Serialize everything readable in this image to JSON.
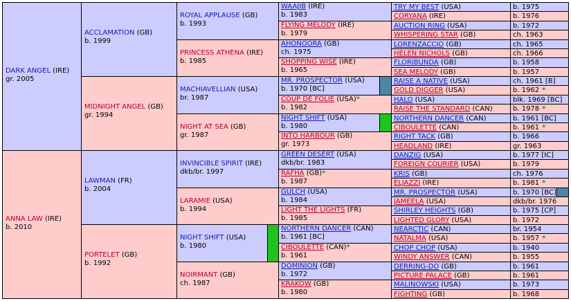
{
  "bars": {
    "green": "#1fc41f",
    "teal": "#4f86a6"
  },
  "pedigree": [
    {
      "gen": 1,
      "row": 0,
      "span": 16,
      "sex": "sire",
      "name": "DARK ANGEL",
      "ctry": "(IRE)",
      "info": "gr. 2005"
    },
    {
      "gen": 1,
      "row": 16,
      "span": 16,
      "sex": "dam",
      "name": "ANNA LAW",
      "ctry": "(IRE)",
      "info": "b. 2010"
    },
    {
      "gen": 2,
      "row": 0,
      "span": 8,
      "sex": "sire",
      "name": "ACCLAMATION",
      "ctry": "(GB)",
      "info": "b. 1999"
    },
    {
      "gen": 2,
      "row": 8,
      "span": 8,
      "sex": "dam",
      "name": "MIDNIGHT ANGEL",
      "ctry": "(GB)",
      "info": "gr. 1994"
    },
    {
      "gen": 2,
      "row": 16,
      "span": 8,
      "sex": "sire",
      "name": "LAWMAN",
      "ctry": "(FR)",
      "info": "b. 2004"
    },
    {
      "gen": 2,
      "row": 24,
      "span": 8,
      "sex": "dam",
      "name": "PORTELET",
      "ctry": "(GB)",
      "info": "b. 1992"
    },
    {
      "gen": 3,
      "row": 0,
      "span": 4,
      "sex": "sire",
      "name": "ROYAL APPLAUSE",
      "ctry": "(GB)",
      "info": "b. 1993"
    },
    {
      "gen": 3,
      "row": 4,
      "span": 4,
      "sex": "dam",
      "name": "PRINCESS ATHENA",
      "ctry": "(IRE)",
      "info": "b. 1985"
    },
    {
      "gen": 3,
      "row": 8,
      "span": 4,
      "sex": "sire",
      "name": "MACHIAVELLIAN",
      "ctry": "(USA)",
      "info": "br. 1987"
    },
    {
      "gen": 3,
      "row": 12,
      "span": 4,
      "sex": "dam",
      "name": "NIGHT AT SEA",
      "ctry": "(GB)",
      "info": "gr. 1987"
    },
    {
      "gen": 3,
      "row": 16,
      "span": 4,
      "sex": "sire",
      "name": "INVINCIBLE SPIRIT",
      "ctry": "(IRE)",
      "info": "dkb/br. 1997"
    },
    {
      "gen": 3,
      "row": 20,
      "span": 4,
      "sex": "dam",
      "name": "LARAMIE",
      "ctry": "(USA)",
      "info": "b. 1994"
    },
    {
      "gen": 3,
      "row": 24,
      "span": 4,
      "sex": "sire",
      "name": "NIGHT SHIFT",
      "ctry": "(USA)",
      "info": "b. 1980",
      "bar": "green"
    },
    {
      "gen": 3,
      "row": 28,
      "span": 4,
      "sex": "dam",
      "name": "NOIRMANT",
      "ctry": "(GB)",
      "info": "ch. 1987"
    },
    {
      "gen": 4,
      "row": 0,
      "span": 2,
      "sex": "sire",
      "name": "WAAJIB",
      "ctry": "(IRE)",
      "info": "b. 1983"
    },
    {
      "gen": 4,
      "row": 2,
      "span": 2,
      "sex": "dam",
      "name": "FLYING MELODY",
      "ctry": "(IRE)",
      "info": "b. 1979"
    },
    {
      "gen": 4,
      "row": 4,
      "span": 2,
      "sex": "sire",
      "name": "AHONOORA",
      "ctry": "(GB)",
      "info": "ch. 1975"
    },
    {
      "gen": 4,
      "row": 6,
      "span": 2,
      "sex": "dam",
      "name": "SHOPPING WISE",
      "ctry": "(IRE)",
      "info": "b. 1965"
    },
    {
      "gen": 4,
      "row": 8,
      "span": 2,
      "sex": "sire",
      "name": "MR. PROSPECTOR",
      "ctry": "(USA)",
      "info": "b. 1970 [BC]",
      "bar": "teal"
    },
    {
      "gen": 4,
      "row": 10,
      "span": 2,
      "sex": "dam",
      "name": "COUP DE FOLIE",
      "ctry": "(USA)",
      "info": "b. 1982",
      "star": true
    },
    {
      "gen": 4,
      "row": 12,
      "span": 2,
      "sex": "sire",
      "name": "NIGHT SHIFT",
      "ctry": "(USA)",
      "info": "b. 1980",
      "bar": "green"
    },
    {
      "gen": 4,
      "row": 14,
      "span": 2,
      "sex": "dam",
      "name": "INTO HARBOUR",
      "ctry": "(GB)",
      "info": "gr. 1973"
    },
    {
      "gen": 4,
      "row": 16,
      "span": 2,
      "sex": "sire",
      "name": "GREEN DESERT",
      "ctry": "(USA)",
      "info": "dkb/br. 1983"
    },
    {
      "gen": 4,
      "row": 18,
      "span": 2,
      "sex": "dam",
      "name": "RAFHA",
      "ctry": "(GB)",
      "info": "b. 1987",
      "star": true
    },
    {
      "gen": 4,
      "row": 20,
      "span": 2,
      "sex": "sire",
      "name": "GULCH",
      "ctry": "(USA)",
      "info": "b. 1984"
    },
    {
      "gen": 4,
      "row": 22,
      "span": 2,
      "sex": "dam",
      "name": "LIGHT THE LIGHTS",
      "ctry": "(FR)",
      "info": "b. 1985"
    },
    {
      "gen": 4,
      "row": 24,
      "span": 2,
      "sex": "sire",
      "name": "NORTHERN DANCER",
      "ctry": "(CAN)",
      "info": "b. 1961 [BC]"
    },
    {
      "gen": 4,
      "row": 26,
      "span": 2,
      "sex": "dam",
      "name": "CIBOULETTE",
      "ctry": "(CAN)",
      "info": "b. 1961",
      "star": true
    },
    {
      "gen": 4,
      "row": 28,
      "span": 2,
      "sex": "sire",
      "name": "DOMINION",
      "ctry": "(GB)",
      "info": "b. 1972"
    },
    {
      "gen": 4,
      "row": 30,
      "span": 2,
      "sex": "dam",
      "name": "KRAKOW",
      "ctry": "(GB)",
      "info": "b. 1980"
    },
    {
      "gen": 5,
      "row": 0,
      "span": 1,
      "sex": "sire",
      "name": "TRY MY BEST",
      "ctry": "(USA)",
      "info": "b. 1975"
    },
    {
      "gen": 5,
      "row": 1,
      "span": 1,
      "sex": "dam",
      "name": "CORYANA",
      "ctry": "(IRE)",
      "info": "b. 1976"
    },
    {
      "gen": 5,
      "row": 2,
      "span": 1,
      "sex": "sire",
      "name": "AUCTION RING",
      "ctry": "(USA)",
      "info": "b. 1972"
    },
    {
      "gen": 5,
      "row": 3,
      "span": 1,
      "sex": "dam",
      "name": "WHISPERING STAR",
      "ctry": "(GB)",
      "info": "ch. 1963"
    },
    {
      "gen": 5,
      "row": 4,
      "span": 1,
      "sex": "sire",
      "name": "LORENZACCIO",
      "ctry": "(GB)",
      "info": "ch. 1965"
    },
    {
      "gen": 5,
      "row": 5,
      "span": 1,
      "sex": "dam",
      "name": "HELEN NICHOLS",
      "ctry": "(GB)",
      "info": "ch. 1966"
    },
    {
      "gen": 5,
      "row": 6,
      "span": 1,
      "sex": "sire",
      "name": "FLORIBUNDA",
      "ctry": "(GB)",
      "info": "b. 1958"
    },
    {
      "gen": 5,
      "row": 7,
      "span": 1,
      "sex": "dam",
      "name": "SEA MELODY",
      "ctry": "(GB)",
      "info": "b. 1957"
    },
    {
      "gen": 5,
      "row": 8,
      "span": 1,
      "sex": "sire",
      "name": "RAISE A NATIVE",
      "ctry": "(USA)",
      "info": "ch. 1961 [B]"
    },
    {
      "gen": 5,
      "row": 9,
      "span": 1,
      "sex": "dam",
      "name": "GOLD DIGGER",
      "ctry": "(USA)",
      "info": "b. 1962",
      "star": true
    },
    {
      "gen": 5,
      "row": 10,
      "span": 1,
      "sex": "sire",
      "name": "HALO",
      "ctry": "(USA)",
      "info": "blk. 1969 [BC]"
    },
    {
      "gen": 5,
      "row": 11,
      "span": 1,
      "sex": "dam",
      "name": "RAISE THE STANDARD",
      "ctry": "(CAN)",
      "info": "b. 1978",
      "star": true
    },
    {
      "gen": 5,
      "row": 12,
      "span": 1,
      "sex": "sire",
      "name": "NORTHERN DANCER",
      "ctry": "(CAN)",
      "info": "b. 1961 [BC]"
    },
    {
      "gen": 5,
      "row": 13,
      "span": 1,
      "sex": "dam",
      "name": "CIBOULETTE",
      "ctry": "(CAN)",
      "info": "b. 1961",
      "star": true
    },
    {
      "gen": 5,
      "row": 14,
      "span": 1,
      "sex": "sire",
      "name": "RIGHT TACK",
      "ctry": "(GB)",
      "info": "b. 1966"
    },
    {
      "gen": 5,
      "row": 15,
      "span": 1,
      "sex": "dam",
      "name": "HEADLAND",
      "ctry": "(IRE)",
      "info": "gr. 1963"
    },
    {
      "gen": 5,
      "row": 16,
      "span": 1,
      "sex": "sire",
      "name": "DANZIG",
      "ctry": "(USA)",
      "info": "b. 1977 [IC]"
    },
    {
      "gen": 5,
      "row": 17,
      "span": 1,
      "sex": "dam",
      "name": "FOREIGN COURIER",
      "ctry": "(USA)",
      "info": "b. 1979"
    },
    {
      "gen": 5,
      "row": 18,
      "span": 1,
      "sex": "sire",
      "name": "KRIS",
      "ctry": "(GB)",
      "info": "ch. 1976"
    },
    {
      "gen": 5,
      "row": 19,
      "span": 1,
      "sex": "dam",
      "name": "ELJAZZI",
      "ctry": "(IRE)",
      "info": "b. 1981",
      "star": true
    },
    {
      "gen": 5,
      "row": 20,
      "span": 1,
      "sex": "sire",
      "name": "MR. PROSPECTOR",
      "ctry": "(USA)",
      "info": "b. 1970 [BC]",
      "bar": "teal"
    },
    {
      "gen": 5,
      "row": 21,
      "span": 1,
      "sex": "dam",
      "name": "JAMEELA",
      "ctry": "(USA)",
      "info": "dkb/br. 1976"
    },
    {
      "gen": 5,
      "row": 22,
      "span": 1,
      "sex": "sire",
      "name": "SHIRLEY HEIGHTS",
      "ctry": "(GB)",
      "info": "b. 1975 [CP]"
    },
    {
      "gen": 5,
      "row": 23,
      "span": 1,
      "sex": "dam",
      "name": "LIGHTED GLORY",
      "ctry": "(USA)",
      "info": "b. 1972"
    },
    {
      "gen": 5,
      "row": 24,
      "span": 1,
      "sex": "sire",
      "name": "NEARCTIC",
      "ctry": "(CAN)",
      "info": "br. 1954"
    },
    {
      "gen": 5,
      "row": 25,
      "span": 1,
      "sex": "dam",
      "name": "NATALMA",
      "ctry": "(USA)",
      "info": "b. 1957",
      "star": true
    },
    {
      "gen": 5,
      "row": 26,
      "span": 1,
      "sex": "sire",
      "name": "CHOP CHOP",
      "ctry": "(USA)",
      "info": "b. 1940"
    },
    {
      "gen": 5,
      "row": 27,
      "span": 1,
      "sex": "dam",
      "name": "WINDY ANSWER",
      "ctry": "(CAN)",
      "info": "b. 1955"
    },
    {
      "gen": 5,
      "row": 28,
      "span": 1,
      "sex": "sire",
      "name": "DERRING-DO",
      "ctry": "(GB)",
      "info": "b. 1961"
    },
    {
      "gen": 5,
      "row": 29,
      "span": 1,
      "sex": "dam",
      "name": "PICTURE PALACE",
      "ctry": "(GB)",
      "info": "b. 1961"
    },
    {
      "gen": 5,
      "row": 30,
      "span": 1,
      "sex": "sire",
      "name": "MALINOWSKI",
      "ctry": "(USA)",
      "info": "b. 1973"
    },
    {
      "gen": 5,
      "row": 31,
      "span": 1,
      "sex": "dam",
      "name": "FIGHTING",
      "ctry": "(GB)",
      "info": "b. 1968"
    }
  ]
}
